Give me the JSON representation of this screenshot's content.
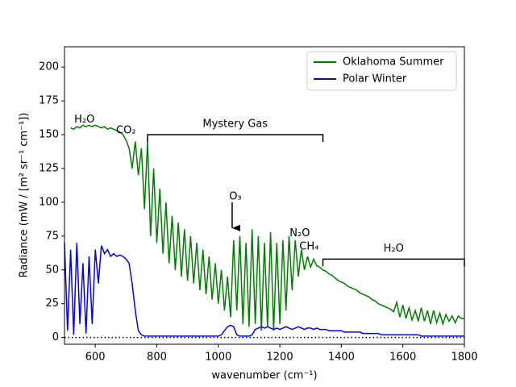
{
  "chart_data": {
    "type": "line",
    "xlabel": "wavenumber (cm⁻¹)",
    "ylabel": "Radiance (mW / [m² sr⁻¹ cm⁻¹])",
    "xlim": [
      500,
      1800
    ],
    "ylim": [
      -5,
      215
    ],
    "xticks": [
      600,
      800,
      1000,
      1200,
      1400,
      1600,
      1800
    ],
    "yticks": [
      0,
      25,
      50,
      75,
      100,
      125,
      150,
      175,
      200
    ],
    "legend": "upper right",
    "reference_line": 0,
    "x": [
      500,
      510,
      520,
      530,
      540,
      550,
      560,
      570,
      580,
      590,
      600,
      610,
      620,
      630,
      640,
      650,
      660,
      670,
      680,
      690,
      700,
      710,
      720,
      730,
      740,
      750,
      760,
      770,
      780,
      790,
      800,
      810,
      820,
      830,
      840,
      850,
      860,
      870,
      880,
      890,
      900,
      910,
      920,
      930,
      940,
      950,
      960,
      970,
      980,
      990,
      1000,
      1010,
      1020,
      1030,
      1040,
      1050,
      1060,
      1070,
      1080,
      1090,
      1100,
      1110,
      1120,
      1130,
      1140,
      1150,
      1160,
      1170,
      1180,
      1190,
      1200,
      1210,
      1220,
      1230,
      1240,
      1250,
      1260,
      1270,
      1280,
      1290,
      1300,
      1310,
      1320,
      1330,
      1340,
      1350,
      1360,
      1370,
      1380,
      1390,
      1400,
      1410,
      1420,
      1430,
      1440,
      1450,
      1460,
      1470,
      1480,
      1490,
      1500,
      1510,
      1520,
      1530,
      1540,
      1550,
      1560,
      1570,
      1580,
      1590,
      1600,
      1610,
      1620,
      1630,
      1640,
      1650,
      1660,
      1670,
      1680,
      1690,
      1700,
      1710,
      1720,
      1730,
      1740,
      1750,
      1760,
      1770,
      1780,
      1790,
      1800
    ],
    "series": [
      {
        "name": "Oklahoma Summer",
        "color": "#008000",
        "values": [
          null,
          null,
          155,
          154,
          156,
          155,
          157,
          156,
          157,
          156,
          157,
          156,
          155,
          156,
          154,
          155,
          154,
          153,
          152,
          150,
          146,
          140,
          125,
          145,
          120,
          140,
          95,
          145,
          75,
          125,
          70,
          110,
          62,
          100,
          55,
          90,
          50,
          85,
          45,
          80,
          42,
          75,
          40,
          70,
          35,
          65,
          32,
          60,
          28,
          55,
          25,
          50,
          20,
          45,
          15,
          72,
          20,
          75,
          10,
          70,
          8,
          80,
          10,
          75,
          5,
          70,
          8,
          78,
          5,
          70,
          10,
          72,
          20,
          75,
          35,
          72,
          45,
          65,
          50,
          60,
          52,
          58,
          53,
          52,
          50,
          49,
          47,
          46,
          44,
          42,
          41,
          40,
          38,
          37,
          36,
          35,
          33,
          32,
          31,
          30,
          28,
          27,
          25,
          24,
          23,
          22,
          21,
          19,
          26,
          15,
          24,
          14,
          22,
          13,
          20,
          12,
          22,
          12,
          20,
          10,
          20,
          11,
          18,
          10,
          17,
          12,
          16,
          11,
          16,
          14,
          14
        ]
      },
      {
        "name": "Polar Winter",
        "color": "#0000ff",
        "values": [
          70,
          5,
          65,
          2,
          70,
          10,
          55,
          3,
          60,
          10,
          65,
          40,
          68,
          62,
          65,
          60,
          62,
          60,
          61,
          60,
          58,
          55,
          40,
          20,
          5,
          2,
          1,
          1,
          1,
          1,
          1,
          1,
          1,
          1,
          1,
          1,
          1,
          1,
          1,
          1,
          1,
          1,
          1,
          1,
          1,
          1,
          1,
          1,
          1,
          1,
          1,
          2,
          5,
          8,
          9,
          8,
          2,
          1,
          1,
          1,
          1,
          2,
          6,
          7,
          8,
          7,
          8,
          7,
          6,
          7,
          6,
          7,
          8,
          7,
          6,
          7,
          8,
          7,
          6,
          7,
          7,
          6,
          7,
          6,
          6,
          6,
          5,
          5,
          5,
          5,
          5,
          4,
          4,
          4,
          4,
          4,
          4,
          3,
          3,
          3,
          3,
          3,
          3,
          2,
          2,
          2,
          2,
          2,
          2,
          2,
          2,
          2,
          2,
          2,
          2,
          2,
          1,
          1,
          1,
          1,
          1,
          1,
          1,
          1,
          1,
          1,
          1,
          1,
          1,
          1,
          1
        ]
      }
    ],
    "annotations": [
      {
        "text": "H₂O",
        "x": 565,
        "y": 161
      },
      {
        "text": "CO₂",
        "x": 700,
        "y": 153
      },
      {
        "text": "N₂O",
        "x": 1265,
        "y": 77
      },
      {
        "text": "CH₄",
        "x": 1295,
        "y": 67
      }
    ],
    "brackets": [
      {
        "text": "Mystery Gas",
        "x": [
          770,
          1340
        ],
        "y": 150
      },
      {
        "text": "H₂O",
        "x": [
          1340,
          1800
        ],
        "y": 58
      }
    ],
    "arrows": [
      {
        "text": "O₃",
        "x": 1045,
        "y": [
          100,
          75
        ]
      }
    ]
  }
}
